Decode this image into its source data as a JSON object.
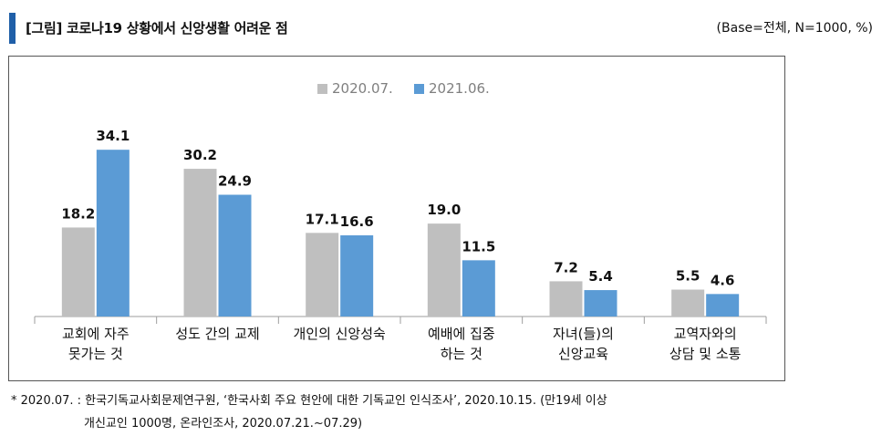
{
  "header": {
    "title": "[그림] 코로나19 상황에서 신앙생활 어려운 점",
    "base_note": "(Base=전체, N=1000, %)"
  },
  "chart_data": {
    "type": "bar",
    "categories": [
      [
        "교회에 자주",
        "못가는 것"
      ],
      [
        "성도 간의 교제"
      ],
      [
        "개인의 신앙성숙"
      ],
      [
        "예배에 집중",
        "하는 것"
      ],
      [
        "자녀(들)의",
        "신앙교육"
      ],
      [
        "교역자와의",
        "상담 및 소통"
      ]
    ],
    "series": [
      {
        "name": "2020.07.",
        "color": "#bfbfbf",
        "values": [
          18.2,
          30.2,
          17.1,
          19.0,
          7.2,
          5.5
        ]
      },
      {
        "name": "2021.06.",
        "color": "#5b9bd5",
        "values": [
          34.1,
          24.9,
          16.6,
          11.5,
          5.4,
          4.6
        ]
      }
    ],
    "value_labels": [
      [
        "18.2",
        "30.2",
        "17.1",
        "19.0",
        "7.2",
        "5.5"
      ],
      [
        "34.1",
        "24.9",
        "16.6",
        "11.5",
        "5.4",
        "4.6"
      ]
    ],
    "ylim": [
      0,
      36
    ],
    "legend_position": "top-center",
    "grid": false
  },
  "footnotes": {
    "line1": "* 2020.07. : 한국기독교사회문제연구원, ‘한국사회 주요 현안에 대한 기독교인 인식조사’, 2020.10.15. (만19세 이상",
    "line2": "개신교인 1000명, 온라인조사, 2020.07.21.~07.29)"
  }
}
